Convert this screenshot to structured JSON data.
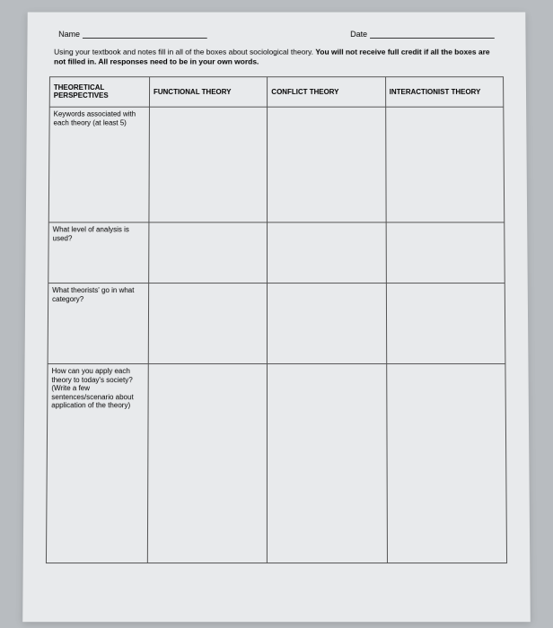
{
  "header": {
    "name_label": "Name",
    "date_label": "Date"
  },
  "instructions": {
    "line1_a": "Using your textbook and notes fill in all of the boxes about sociological theory. ",
    "line1_b": "You will not receive full credit if all the boxes are not filled in. All responses need to be in your own words."
  },
  "columns": {
    "c0": "THEORETICAL PERSPECTIVES",
    "c1": "FUNCTIONAL THEORY",
    "c2": "CONFLICT THEORY",
    "c3": "INTERACTIONIST THEORY"
  },
  "rows": {
    "r1": "Keywords associated with each theory (at least 5)",
    "r2": "What level of analysis is used?",
    "r3": "What theorists' go in what category?",
    "r4": "How can you apply each theory to today's society? (Write a few sentences/scenario about application of the theory)"
  }
}
